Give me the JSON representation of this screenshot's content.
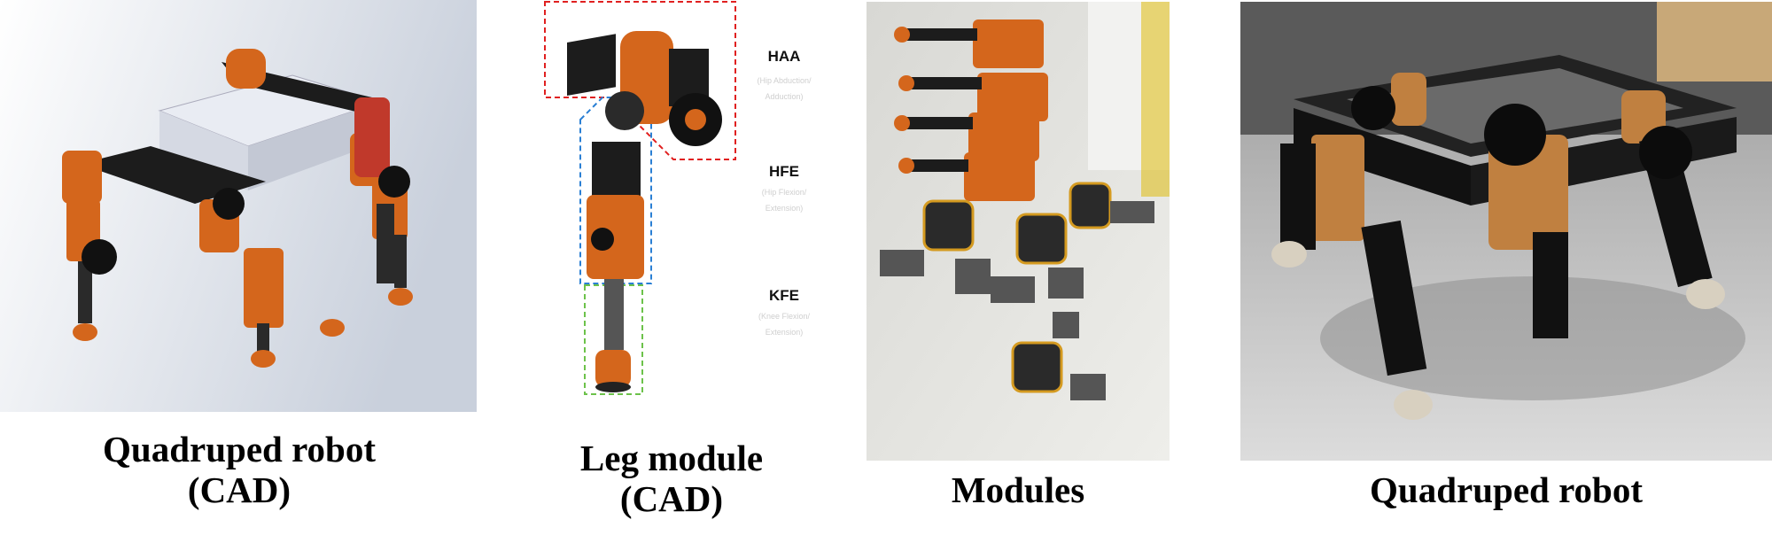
{
  "panels": [
    {
      "id": "cad-robot",
      "caption_lines": [
        "Quadruped robot",
        "(CAD)"
      ]
    },
    {
      "id": "leg-module",
      "caption_lines": [
        "Leg module",
        "(CAD)"
      ]
    },
    {
      "id": "modules-photo",
      "caption_lines": [
        "Modules"
      ]
    },
    {
      "id": "robot-photo",
      "caption_lines": [
        "Quadruped robot"
      ]
    }
  ],
  "joints": [
    {
      "label": "HAA",
      "sub": [
        "(Hip Abduction/",
        "Adduction)"
      ]
    },
    {
      "label": "HFE",
      "sub": [
        "(Hip Flexion/",
        "Extension)"
      ]
    },
    {
      "label": "KFE",
      "sub": [
        "(Knee Flexion/",
        "Extension)"
      ]
    }
  ],
  "colors": {
    "orange": "#d4661c",
    "black_part": "#1c1c1c",
    "haa_box": "#e02020",
    "hfe_box": "#2a7fd4",
    "kfe_box": "#6cc24a"
  }
}
